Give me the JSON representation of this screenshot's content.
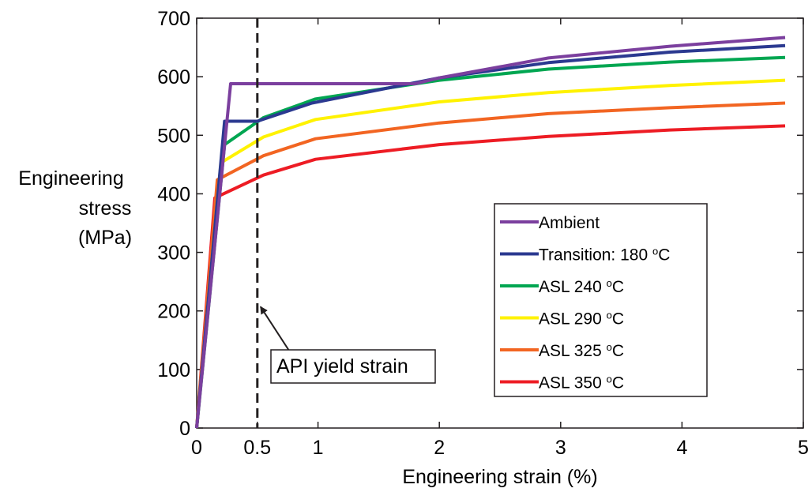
{
  "chart_data": {
    "type": "line",
    "title": "",
    "xlabel": "Engineering strain (%)",
    "ylabel_lines": [
      "Engineering",
      "stress",
      "(MPa)"
    ],
    "xlim": [
      0,
      5
    ],
    "ylim": [
      0,
      700
    ],
    "xticks": [
      0,
      0.5,
      1,
      2,
      3,
      4,
      5
    ],
    "xtick_labels": [
      "0",
      "0.5",
      "1",
      "2",
      "3",
      "4",
      "5"
    ],
    "yticks": [
      0,
      100,
      200,
      300,
      400,
      500,
      600,
      700
    ],
    "ytick_labels": [
      "0",
      "100",
      "200",
      "300",
      "400",
      "500",
      "600",
      "700"
    ],
    "grid": false,
    "legend_position": "lower-right",
    "series": [
      {
        "name": "Ambient",
        "name_suffix": "",
        "color": "#7b3f9e",
        "x": [
          0,
          0.28,
          0.5,
          1,
          1.8,
          2,
          2.9,
          3.9,
          4.85
        ],
        "y": [
          0,
          588,
          588,
          588,
          588,
          598,
          632,
          652,
          667
        ]
      },
      {
        "name": "Transition: 180 ",
        "name_suffix": "C",
        "color": "#2b3990",
        "x": [
          0,
          0.23,
          0.5,
          0.95,
          2,
          2.9,
          3.9,
          4.85
        ],
        "y": [
          0,
          524,
          524,
          555,
          598,
          624,
          642,
          653
        ]
      },
      {
        "name": "ASL 240 ",
        "name_suffix": "C",
        "color": "#00a651",
        "x": [
          0,
          0.23,
          0.55,
          0.98,
          2,
          2.9,
          3.9,
          4.85
        ],
        "y": [
          0,
          484,
          530,
          562,
          594,
          613,
          625,
          633
        ]
      },
      {
        "name": "ASL 290 ",
        "name_suffix": "C",
        "color": "#fff200",
        "x": [
          0,
          0.2,
          0.55,
          0.98,
          2,
          2.9,
          3.9,
          4.85
        ],
        "y": [
          0,
          453,
          497,
          527,
          557,
          573,
          585,
          594
        ]
      },
      {
        "name": "ASL 325 ",
        "name_suffix": "C",
        "color": "#f26522",
        "x": [
          0,
          0.17,
          0.55,
          0.98,
          2,
          2.9,
          3.9,
          4.85
        ],
        "y": [
          0,
          424,
          465,
          494,
          521,
          537,
          547,
          555
        ]
      },
      {
        "name": "ASL 350 ",
        "name_suffix": "C",
        "color": "#ed1c24",
        "x": [
          0,
          0.15,
          0.55,
          0.98,
          2,
          2.9,
          3.9,
          4.85
        ],
        "y": [
          0,
          393,
          432,
          459,
          484,
          498,
          509,
          516
        ]
      }
    ],
    "vline": {
      "x": 0.5,
      "style": "dashed",
      "color": "#231f20"
    },
    "annotation": {
      "text": "API yield strain",
      "arrow_to": [
        0.5,
        210
      ],
      "text_anchor": [
        0.8,
        120
      ]
    }
  }
}
